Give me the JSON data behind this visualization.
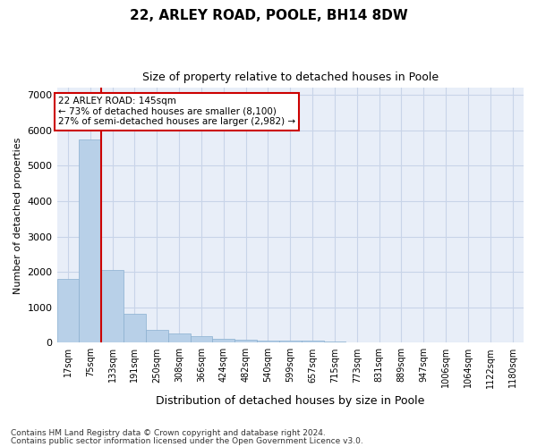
{
  "title": "22, ARLEY ROAD, POOLE, BH14 8DW",
  "subtitle": "Size of property relative to detached houses in Poole",
  "xlabel": "Distribution of detached houses by size in Poole",
  "ylabel": "Number of detached properties",
  "footnote1": "Contains HM Land Registry data © Crown copyright and database right 2024.",
  "footnote2": "Contains public sector information licensed under the Open Government Licence v3.0.",
  "bar_color": "#b8d0e8",
  "bar_edge_color": "#8ab0d0",
  "grid_color": "#c8d4e8",
  "background_color": "#e8eef8",
  "vline_color": "#cc0000",
  "vline_position": 1.5,
  "annotation_text": "22 ARLEY ROAD: 145sqm\n← 73% of detached houses are smaller (8,100)\n27% of semi-detached houses are larger (2,982) →",
  "categories": [
    "17sqm",
    "75sqm",
    "133sqm",
    "191sqm",
    "250sqm",
    "308sqm",
    "366sqm",
    "424sqm",
    "482sqm",
    "540sqm",
    "599sqm",
    "657sqm",
    "715sqm",
    "773sqm",
    "831sqm",
    "889sqm",
    "947sqm",
    "1006sqm",
    "1064sqm",
    "1122sqm",
    "1180sqm"
  ],
  "values": [
    1800,
    5750,
    2050,
    820,
    370,
    260,
    195,
    120,
    85,
    70,
    55,
    50,
    45,
    0,
    0,
    0,
    0,
    0,
    0,
    0,
    0
  ],
  "ylim": [
    0,
    7200
  ],
  "yticks": [
    0,
    1000,
    2000,
    3000,
    4000,
    5000,
    6000,
    7000
  ]
}
